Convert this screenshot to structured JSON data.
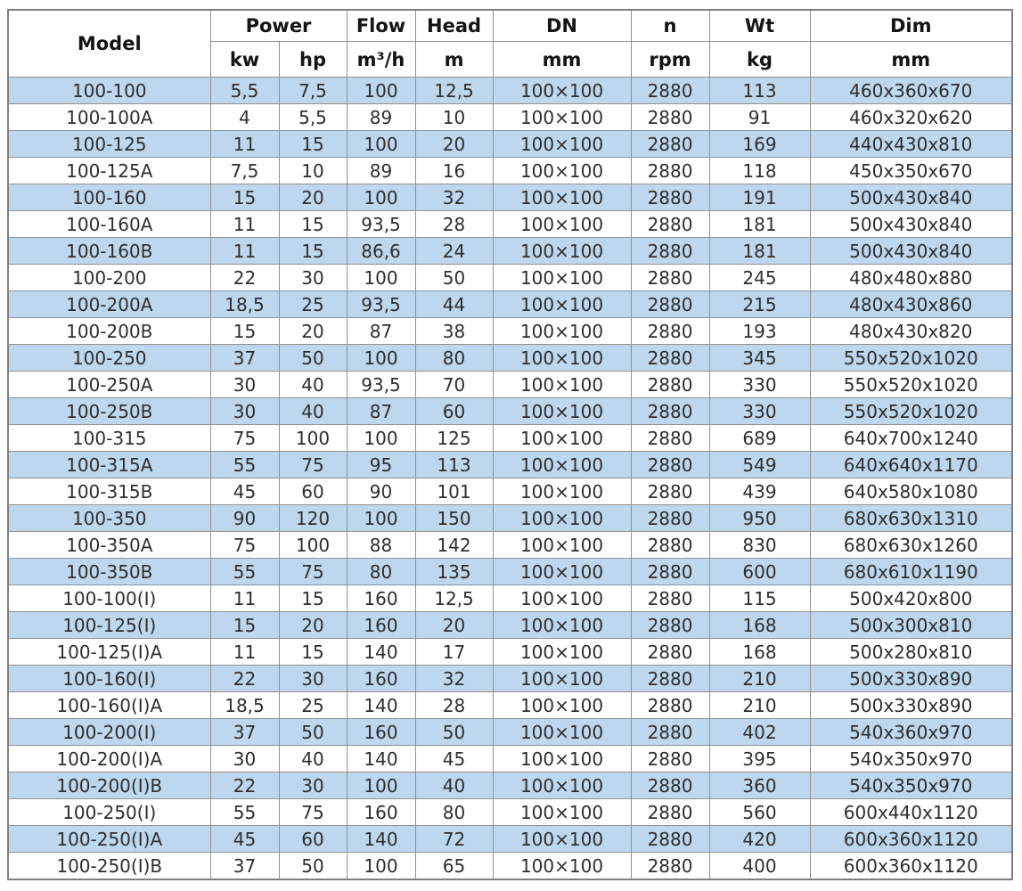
{
  "colors": {
    "row_highlight": "#bdd7ee",
    "row_plain": "#ffffff",
    "inner_border": "#919191",
    "outer_border": "#7f7f7f",
    "header_text": "#141414",
    "cell_text": "#2e2e2e"
  },
  "chart_data": {
    "type": "table",
    "headers": {
      "model": "Model",
      "power": "Power",
      "kw": "kw",
      "hp": "hp",
      "flow": "Flow",
      "flow_unit": "m³/h",
      "head": "Head",
      "head_unit": "m",
      "dn": "DN",
      "dn_unit": "mm",
      "n": "n",
      "n_unit": "rpm",
      "wt": "Wt",
      "wt_unit": "kg",
      "dim": "Dim",
      "dim_unit": "mm"
    },
    "column_keys": [
      "model",
      "kw",
      "hp",
      "flow",
      "head",
      "dn",
      "n",
      "wt",
      "dim"
    ],
    "rows": [
      [
        "100-100",
        "5,5",
        "7,5",
        "100",
        "12,5",
        "100×100",
        "2880",
        "113",
        "460x360x670"
      ],
      [
        "100-100A",
        "4",
        "5,5",
        "89",
        "10",
        "100×100",
        "2880",
        "91",
        "460x320x620"
      ],
      [
        "100-125",
        "11",
        "15",
        "100",
        "20",
        "100×100",
        "2880",
        "169",
        "440x430x810"
      ],
      [
        "100-125A",
        "7,5",
        "10",
        "89",
        "16",
        "100×100",
        "2880",
        "118",
        "450x350x670"
      ],
      [
        "100-160",
        "15",
        "20",
        "100",
        "32",
        "100×100",
        "2880",
        "191",
        "500x430x840"
      ],
      [
        "100-160A",
        "11",
        "15",
        "93,5",
        "28",
        "100×100",
        "2880",
        "181",
        "500x430x840"
      ],
      [
        "100-160B",
        "11",
        "15",
        "86,6",
        "24",
        "100×100",
        "2880",
        "181",
        "500x430x840"
      ],
      [
        "100-200",
        "22",
        "30",
        "100",
        "50",
        "100×100",
        "2880",
        "245",
        "480x480x880"
      ],
      [
        "100-200A",
        "18,5",
        "25",
        "93,5",
        "44",
        "100×100",
        "2880",
        "215",
        "480x430x860"
      ],
      [
        "100-200B",
        "15",
        "20",
        "87",
        "38",
        "100×100",
        "2880",
        "193",
        "480x430x820"
      ],
      [
        "100-250",
        "37",
        "50",
        "100",
        "80",
        "100×100",
        "2880",
        "345",
        "550x520x1020"
      ],
      [
        "100-250A",
        "30",
        "40",
        "93,5",
        "70",
        "100×100",
        "2880",
        "330",
        "550x520x1020"
      ],
      [
        "100-250B",
        "30",
        "40",
        "87",
        "60",
        "100×100",
        "2880",
        "330",
        "550x520x1020"
      ],
      [
        "100-315",
        "75",
        "100",
        "100",
        "125",
        "100×100",
        "2880",
        "689",
        "640x700x1240"
      ],
      [
        "100-315A",
        "55",
        "75",
        "95",
        "113",
        "100×100",
        "2880",
        "549",
        "640x640x1170"
      ],
      [
        "100-315B",
        "45",
        "60",
        "90",
        "101",
        "100×100",
        "2880",
        "439",
        "640x580x1080"
      ],
      [
        "100-350",
        "90",
        "120",
        "100",
        "150",
        "100×100",
        "2880",
        "950",
        "680x630x1310"
      ],
      [
        "100-350A",
        "75",
        "100",
        "88",
        "142",
        "100×100",
        "2880",
        "830",
        "680x630x1260"
      ],
      [
        "100-350B",
        "55",
        "75",
        "80",
        "135",
        "100×100",
        "2880",
        "600",
        "680x610x1190"
      ],
      [
        "100-100(I)",
        "11",
        "15",
        "160",
        "12,5",
        "100×100",
        "2880",
        "115",
        "500x420x800"
      ],
      [
        "100-125(I)",
        "15",
        "20",
        "160",
        "20",
        "100×100",
        "2880",
        "168",
        "500x300x810"
      ],
      [
        "100-125(I)A",
        "11",
        "15",
        "140",
        "17",
        "100×100",
        "2880",
        "168",
        "500x280x810"
      ],
      [
        "100-160(I)",
        "22",
        "30",
        "160",
        "32",
        "100×100",
        "2880",
        "210",
        "500x330x890"
      ],
      [
        "100-160(I)A",
        "18,5",
        "25",
        "140",
        "28",
        "100×100",
        "2880",
        "210",
        "500x330x890"
      ],
      [
        "100-200(I)",
        "37",
        "50",
        "160",
        "50",
        "100×100",
        "2880",
        "402",
        "540x360x970"
      ],
      [
        "100-200(I)A",
        "30",
        "40",
        "140",
        "45",
        "100×100",
        "2880",
        "395",
        "540x350x970"
      ],
      [
        "100-200(I)B",
        "22",
        "30",
        "100",
        "40",
        "100×100",
        "2880",
        "360",
        "540x350x970"
      ],
      [
        "100-250(I)",
        "55",
        "75",
        "160",
        "80",
        "100×100",
        "2880",
        "560",
        "600x440x1120"
      ],
      [
        "100-250(I)A",
        "45",
        "60",
        "140",
        "72",
        "100×100",
        "2880",
        "420",
        "600x360x1120"
      ],
      [
        "100-250(I)B",
        "37",
        "50",
        "100",
        "65",
        "100×100",
        "2880",
        "400",
        "600x360x1120"
      ]
    ],
    "first_row_highlighted": true
  }
}
